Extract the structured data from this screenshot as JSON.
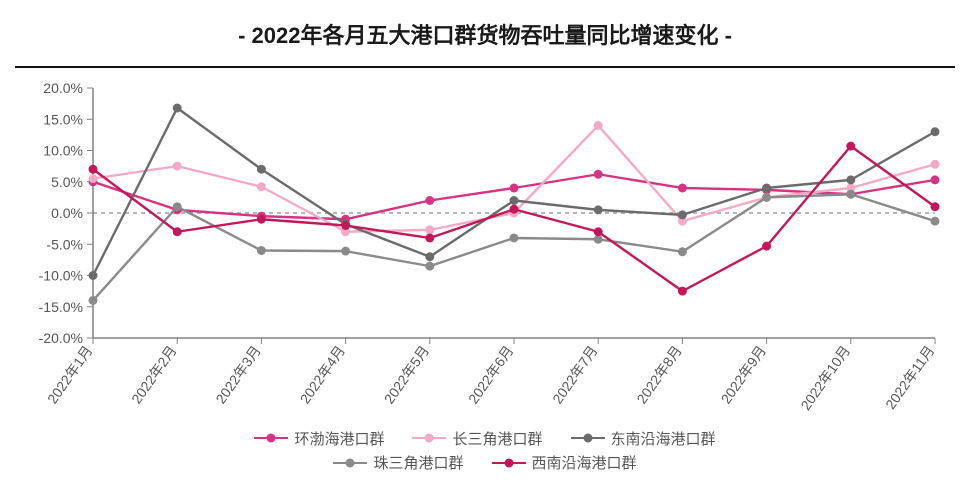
{
  "title": {
    "prefix": "- ",
    "text": "2022年各月五大港口群货物吞吐量同比增速变化",
    "suffix": " -",
    "fontsize": 22,
    "color": "#1a1a1a"
  },
  "chart": {
    "type": "line",
    "background_color": "#ffffff",
    "plot_border_color": "#808080",
    "zero_line_color": "#b5b5b5",
    "zero_line_dash": "4 4",
    "ylim": [
      -20,
      20
    ],
    "ytick_step": 5,
    "y_suffix": "%",
    "y_decimal": 1,
    "categories": [
      "2022年1月",
      "2022年2月",
      "2022年3月",
      "2022年4月",
      "2022年5月",
      "2022年6月",
      "2022年7月",
      "2022年8月",
      "2022年9月",
      "2022年10月",
      "2022年11月"
    ],
    "tick_fontsize": 14,
    "xtick_rotate": -55,
    "marker_radius": 4.5,
    "line_width": 2.4,
    "series": [
      {
        "name": "环渤海港口群",
        "color": "#d63384",
        "values": [
          5.0,
          0.5,
          -0.5,
          -1.0,
          2.0,
          4.0,
          6.2,
          4.0,
          3.7,
          3.0,
          5.3
        ]
      },
      {
        "name": "长三角港口群",
        "color": "#f4a9c9",
        "values": [
          5.5,
          7.5,
          4.2,
          -3.0,
          -2.7,
          0.0,
          14.0,
          -1.3,
          2.5,
          4.0,
          7.8
        ]
      },
      {
        "name": "东南沿海港口群",
        "color": "#6b6b6b",
        "values": [
          -10.0,
          16.8,
          7.0,
          -1.8,
          -7.0,
          2.0,
          0.5,
          -0.3,
          4.0,
          5.3,
          13.0
        ]
      },
      {
        "name": "珠三角港口群",
        "color": "#8a8a8a",
        "values": [
          -14.0,
          1.0,
          -6.0,
          -6.1,
          -8.5,
          -4.0,
          -4.2,
          -6.2,
          2.5,
          3.0,
          -1.3
        ]
      },
      {
        "name": "西南沿海港口群",
        "color": "#c2185b",
        "values": [
          7.0,
          -3.0,
          -1.0,
          -2.0,
          -4.0,
          0.6,
          -3.0,
          -12.5,
          -5.3,
          10.7,
          1.0
        ]
      }
    ],
    "legend_rows": [
      [
        0,
        1,
        2
      ],
      [
        3,
        4
      ]
    ]
  }
}
